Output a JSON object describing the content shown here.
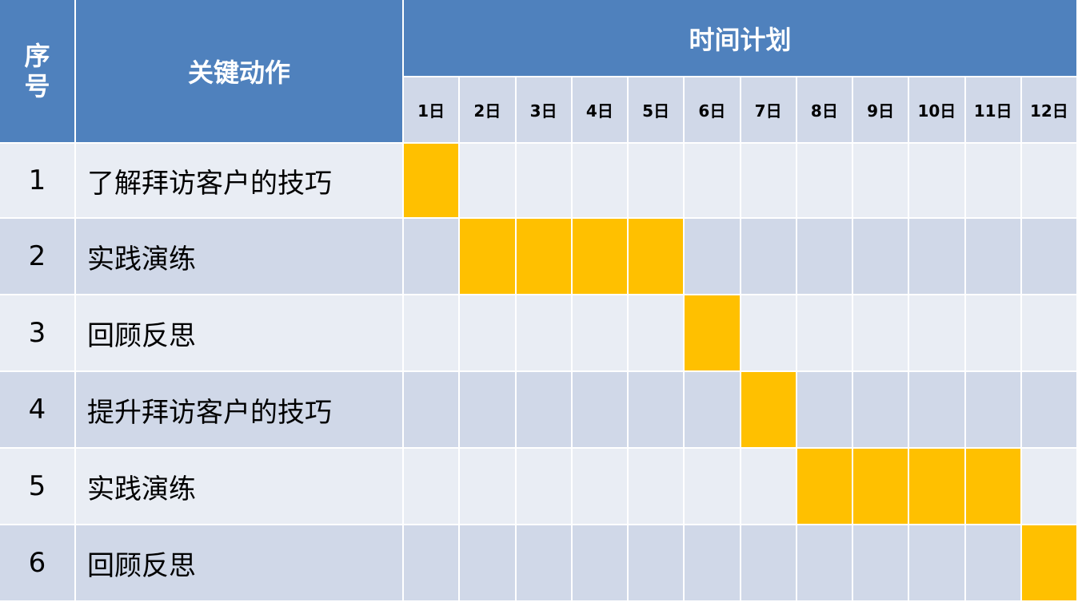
{
  "header": {
    "seq_label_1": "序",
    "seq_label_2": "号",
    "action_label": "关键动作",
    "plan_label": "时间计划"
  },
  "colors": {
    "header": "#4F81BD",
    "row_light": "#E9EDF4",
    "row_dark": "#D0D8E8",
    "active": "#FFC000"
  },
  "chart_data": {
    "type": "table",
    "days": [
      "1日",
      "2日",
      "3日",
      "4日",
      "5日",
      "6日",
      "7日",
      "8日",
      "9日",
      "10日",
      "11日",
      "12日"
    ],
    "tasks": [
      {
        "seq": "1",
        "name": "了解拜访客户的技巧",
        "days": [
          1
        ]
      },
      {
        "seq": "2",
        "name": "实践演练",
        "days": [
          2,
          3,
          4,
          5
        ]
      },
      {
        "seq": "3",
        "name": "回顾反思",
        "days": [
          6
        ]
      },
      {
        "seq": "4",
        "name": "提升拜访客户的技巧",
        "days": [
          7
        ]
      },
      {
        "seq": "5",
        "name": "实践演练",
        "days": [
          8,
          9,
          10,
          11
        ]
      },
      {
        "seq": "6",
        "name": "回顾反思",
        "days": [
          12
        ]
      }
    ]
  }
}
